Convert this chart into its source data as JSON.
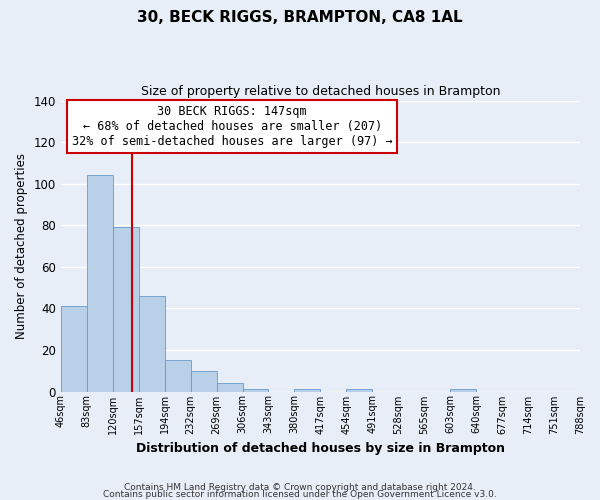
{
  "title": "30, BECK RIGGS, BRAMPTON, CA8 1AL",
  "subtitle": "Size of property relative to detached houses in Brampton",
  "xlabel": "Distribution of detached houses by size in Brampton",
  "ylabel": "Number of detached properties",
  "bar_values": [
    41,
    104,
    79,
    46,
    15,
    10,
    4,
    1,
    0,
    1,
    0,
    1,
    0,
    0,
    0,
    1,
    0,
    0,
    0,
    0
  ],
  "bin_labels": [
    "46sqm",
    "83sqm",
    "120sqm",
    "157sqm",
    "194sqm",
    "232sqm",
    "269sqm",
    "306sqm",
    "343sqm",
    "380sqm",
    "417sqm",
    "454sqm",
    "491sqm",
    "528sqm",
    "565sqm",
    "603sqm",
    "640sqm",
    "677sqm",
    "714sqm",
    "751sqm",
    "788sqm"
  ],
  "bar_color": "#b8d0e8",
  "bar_edge_color": "#6699cc",
  "vline_color": "#cc0000",
  "ylim": [
    0,
    140
  ],
  "yticks": [
    0,
    20,
    40,
    60,
    80,
    100,
    120,
    140
  ],
  "annotation_title": "30 BECK RIGGS: 147sqm",
  "annotation_line1": "← 68% of detached houses are smaller (207)",
  "annotation_line2": "32% of semi-detached houses are larger (97) →",
  "annotation_box_color": "#ffffff",
  "annotation_box_edge_color": "#cc0000",
  "footer_line1": "Contains HM Land Registry data © Crown copyright and database right 2024.",
  "footer_line2": "Contains public sector information licensed under the Open Government Licence v3.0.",
  "background_color": "#e8eef7",
  "grid_color": "#ffffff"
}
